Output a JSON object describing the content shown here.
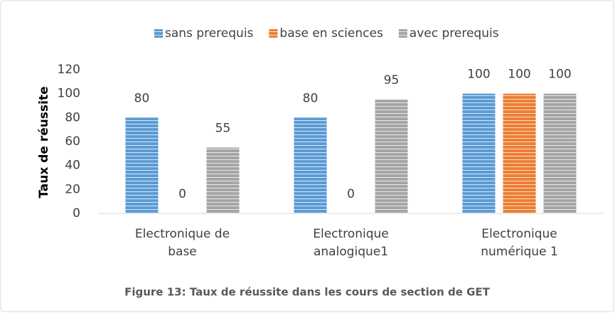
{
  "chart_data": {
    "type": "bar",
    "ylabel": "Taux de réussite",
    "caption": "Figure 13: Taux de réussite dans les cours de section de GET",
    "categories": [
      "Electronique de base",
      "Electronique analogique1",
      "Electronique numérique 1"
    ],
    "series": [
      {
        "name": "sans prerequis",
        "color": "#5b9bd5",
        "values": [
          80,
          80,
          100
        ]
      },
      {
        "name": "base en sciences",
        "color": "#ed7d31",
        "values": [
          0,
          0,
          100
        ]
      },
      {
        "name": "avec prerequis",
        "color": "#a5a5a5",
        "values": [
          55,
          95,
          100
        ]
      }
    ],
    "ylim": [
      0,
      120
    ],
    "yticks": [
      0,
      20,
      40,
      60,
      80,
      100,
      120
    ],
    "grid": false,
    "legend": "top"
  }
}
